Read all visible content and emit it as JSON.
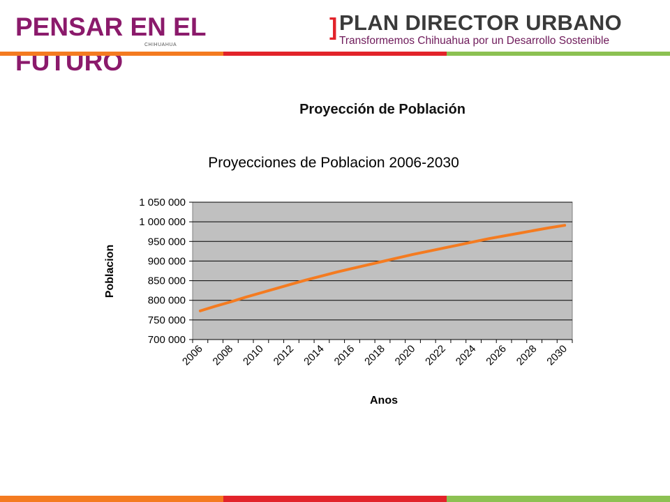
{
  "header": {
    "brand_title": "PENSAR EN EL FUTURO",
    "brand_small": "CHIHUAHUA",
    "plan_title": "PLAN DIRECTOR URBANO",
    "plan_subtitle": "Transformemos Chihuahua por un Desarrollo Sostenible",
    "bracket": "]",
    "colors": {
      "brand": "#8b1a6b",
      "red": "#e2232a",
      "orange": "#f47b20",
      "green": "#8cc152"
    }
  },
  "slide_title": "Proyección de Población",
  "chart_data": {
    "type": "line",
    "title": "Proyecciones de Poblacion 2006-2030",
    "xlabel": "Anos",
    "ylabel": "Poblacion",
    "ylim": [
      700000,
      1050000
    ],
    "yticks": [
      "1 050 000",
      "1 000 000",
      "950 000",
      "900 000",
      "850 000",
      "800 000",
      "750 000",
      "700 000"
    ],
    "xticks": [
      "2006",
      "2008",
      "2010",
      "2012",
      "2014",
      "2016",
      "2018",
      "2020",
      "2022",
      "2024",
      "2026",
      "2028",
      "2030"
    ],
    "x": [
      2006,
      2007,
      2008,
      2009,
      2010,
      2011,
      2012,
      2013,
      2014,
      2015,
      2016,
      2017,
      2018,
      2019,
      2020,
      2021,
      2022,
      2023,
      2024,
      2025,
      2026,
      2027,
      2028,
      2029,
      2030
    ],
    "series": [
      {
        "color": "#f47b20",
        "values": [
          773000,
          785000,
          796000,
          808000,
          819000,
          830000,
          841000,
          852000,
          862000,
          872000,
          881000,
          890000,
          899000,
          908000,
          917000,
          925000,
          933000,
          941000,
          949000,
          957000,
          964000,
          971000,
          978000,
          985000,
          991000
        ]
      }
    ],
    "grid": true,
    "plot_background": "#c0c0c0",
    "legend": "none"
  }
}
